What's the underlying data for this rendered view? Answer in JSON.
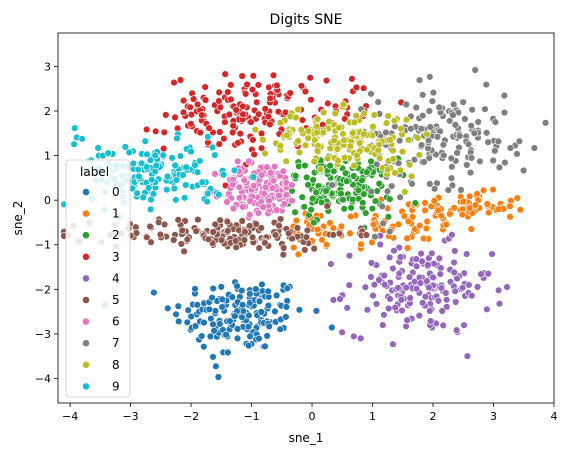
{
  "chart_data": {
    "type": "scatter",
    "title": "Digits SNE",
    "xlabel": "sne_1",
    "ylabel": "sne_2",
    "xlim": [
      -4.2,
      4.0
    ],
    "ylim": [
      -4.55,
      3.75
    ],
    "xticks": [
      -4,
      -3,
      -2,
      -1,
      0,
      1,
      2,
      3,
      4
    ],
    "yticks": [
      -4,
      -3,
      -2,
      -1,
      0,
      1,
      2,
      3
    ],
    "grid": false,
    "legend": {
      "title": "label",
      "placement": "center-left"
    },
    "series": [
      {
        "name": "0",
        "color": "#1f77b4",
        "clusters": [
          {
            "cx": -1.2,
            "cy": -2.55,
            "sx": 0.55,
            "sy": 0.42,
            "n": 160
          },
          {
            "cx": -1.5,
            "cy": -3.7,
            "sx": 0.1,
            "sy": 0.2,
            "n": 6
          }
        ]
      },
      {
        "name": "1",
        "color": "#ff7f0e",
        "clusters": [
          {
            "cx": 2.5,
            "cy": -0.15,
            "sx": 0.55,
            "sy": 0.16,
            "n": 70
          },
          {
            "cx": 1.2,
            "cy": -0.6,
            "sx": 0.6,
            "sy": 0.25,
            "n": 55
          },
          {
            "cx": 0.0,
            "cy": -0.75,
            "sx": 0.3,
            "sy": 0.2,
            "n": 25
          }
        ]
      },
      {
        "name": "2",
        "color": "#2ca02c",
        "clusters": [
          {
            "cx": 0.45,
            "cy": 0.3,
            "sx": 0.45,
            "sy": 0.32,
            "n": 160
          }
        ]
      },
      {
        "name": "3",
        "color": "#d62728",
        "clusters": [
          {
            "cx": -1.1,
            "cy": 1.95,
            "sx": 0.65,
            "sy": 0.42,
            "n": 160
          },
          {
            "cx": 0.6,
            "cy": 2.25,
            "sx": 0.3,
            "sy": 0.3,
            "n": 15
          }
        ]
      },
      {
        "name": "4",
        "color": "#9467bd",
        "clusters": [
          {
            "cx": 1.75,
            "cy": -2.0,
            "sx": 0.6,
            "sy": 0.5,
            "n": 170
          }
        ]
      },
      {
        "name": "5",
        "color": "#8c564b",
        "clusters": [
          {
            "cx": -1.4,
            "cy": -0.75,
            "sx": 1.0,
            "sy": 0.18,
            "n": 165
          }
        ]
      },
      {
        "name": "6",
        "color": "#e377c2",
        "clusters": [
          {
            "cx": -0.85,
            "cy": 0.25,
            "sx": 0.32,
            "sy": 0.3,
            "n": 165
          }
        ]
      },
      {
        "name": "7",
        "color": "#7f7f7f",
        "clusters": [
          {
            "cx": 2.1,
            "cy": 1.5,
            "sx": 0.55,
            "sy": 0.55,
            "n": 140
          },
          {
            "cx": 3.3,
            "cy": 1.2,
            "sx": 0.25,
            "sy": 0.2,
            "n": 12
          },
          {
            "cx": 1.3,
            "cy": 0.4,
            "sx": 0.15,
            "sy": 0.5,
            "n": 10
          }
        ]
      },
      {
        "name": "8",
        "color": "#bcbd22",
        "clusters": [
          {
            "cx": 0.4,
            "cy": 1.4,
            "sx": 0.6,
            "sy": 0.3,
            "n": 160
          },
          {
            "cx": 1.3,
            "cy": 0.75,
            "sx": 0.25,
            "sy": 0.25,
            "n": 15
          }
        ]
      },
      {
        "name": "9",
        "color": "#17becf",
        "clusters": [
          {
            "cx": -2.55,
            "cy": 0.55,
            "sx": 0.55,
            "sy": 0.35,
            "n": 150
          },
          {
            "cx": -3.6,
            "cy": 1.2,
            "sx": 0.2,
            "sy": 0.3,
            "n": 12
          }
        ]
      }
    ]
  }
}
